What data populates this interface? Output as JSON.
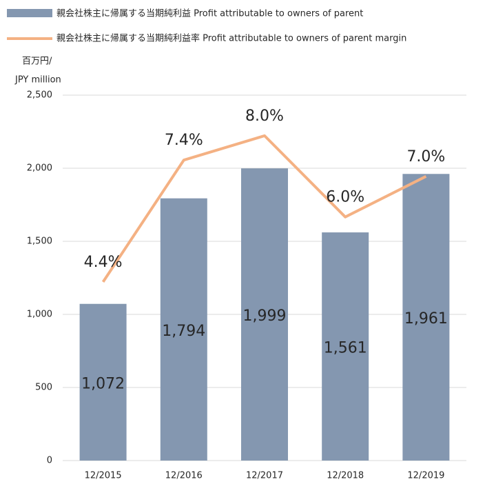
{
  "chart_data": {
    "type": "bar_line",
    "legend": [
      "親会社株主に帰属する当期純利益 Profit attributable to owners of parent",
      "親会社株主に帰属する当期純利益率 Profit attributable to owners of parent margin"
    ],
    "y_label": [
      "百万円/",
      "JPY million"
    ],
    "categories": [
      "12/2015",
      "12/2016",
      "12/2017",
      "12/2018",
      "12/2019"
    ],
    "series": [
      {
        "name": "親会社株主に帰属する当期純利益 Profit attributable to owners of parent",
        "type": "bar",
        "color": "#8497b0",
        "values": [
          1072,
          1794,
          1999,
          1561,
          1961
        ],
        "value_labels": [
          "1,072",
          "1,794",
          "1,999",
          "1,561",
          "1,961"
        ]
      },
      {
        "name": "親会社株主に帰属する当期純利益率 Profit attributable to owners of parent margin",
        "type": "line",
        "axis": "y2",
        "color": "#f4b183",
        "values": [
          4.4,
          7.4,
          8.0,
          6.0,
          7.0
        ],
        "value_labels": [
          "4.4%",
          "7.4%",
          "8.0%",
          "6.0%",
          "7.0%"
        ]
      }
    ],
    "ylim": [
      0,
      2500
    ],
    "yticks": [
      0,
      {
        "value": 500,
        "label": "500"
      },
      {
        "value": 1000,
        "label": "1,000"
      },
      {
        "value": 1500,
        "label": "1,500"
      },
      {
        "value": 2000,
        "label": "2,000"
      },
      {
        "value": 2500,
        "label": "2,500"
      }
    ],
    "y2lim": [
      0,
      9
    ],
    "grid": true
  }
}
